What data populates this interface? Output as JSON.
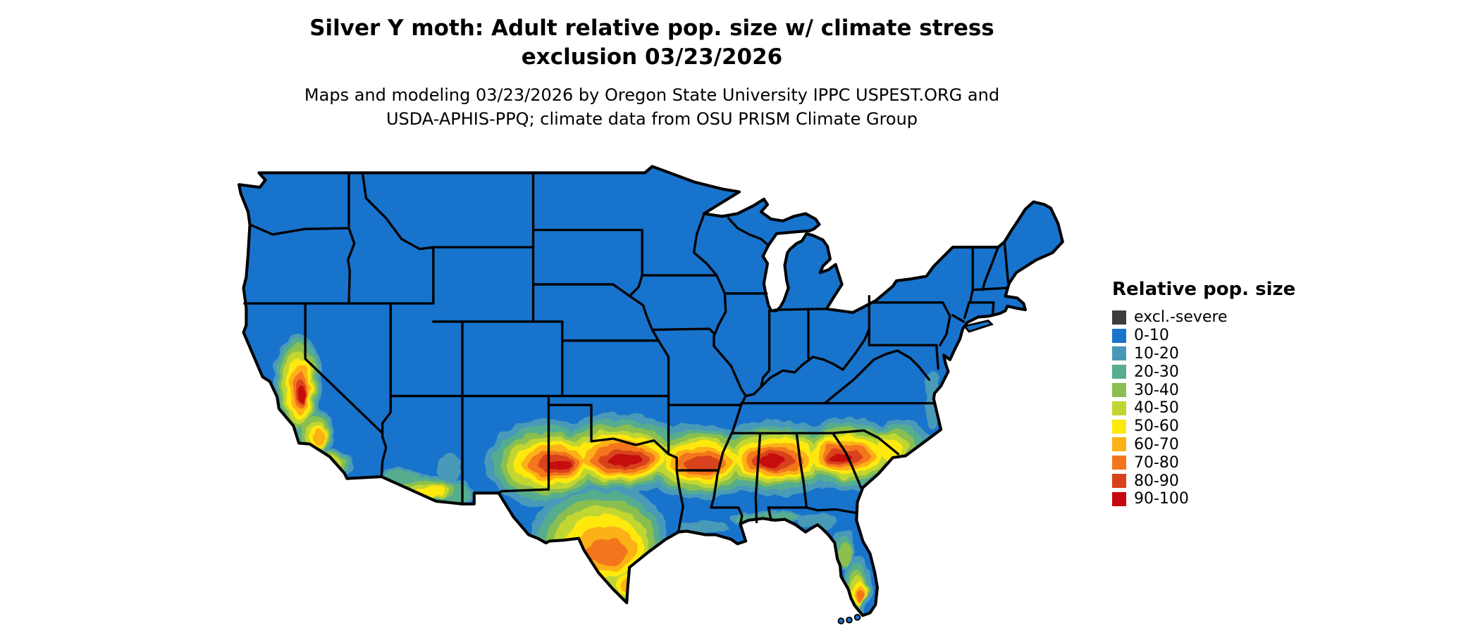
{
  "title": {
    "line1": "Silver Y moth: Adult relative pop. size w/ climate stress",
    "line2": "exclusion 03/23/2026"
  },
  "subtitle": {
    "line1": "Maps and modeling 03/23/2026 by Oregon State University IPPC USPEST.ORG and",
    "line2": "USDA-APHIS-PPQ; climate data from OSU PRISM Climate Group"
  },
  "legend": {
    "title": "Relative pop. size",
    "items": [
      {
        "label": "excl.-severe",
        "color": "#3d3d3d"
      },
      {
        "label": "0-10",
        "color": "#1873cc"
      },
      {
        "label": "10-20",
        "color": "#4899b8"
      },
      {
        "label": "20-30",
        "color": "#57ad8e"
      },
      {
        "label": "30-40",
        "color": "#8abf4f"
      },
      {
        "label": "40-50",
        "color": "#c2d633"
      },
      {
        "label": "50-60",
        "color": "#ffe90c"
      },
      {
        "label": "60-70",
        "color": "#fcb116"
      },
      {
        "label": "70-80",
        "color": "#f3761f"
      },
      {
        "label": "80-90",
        "color": "#d8421a"
      },
      {
        "label": "90-100",
        "color": "#c5070e"
      }
    ]
  },
  "colors": {
    "background": "#ffffff",
    "state_border": "#000000"
  }
}
